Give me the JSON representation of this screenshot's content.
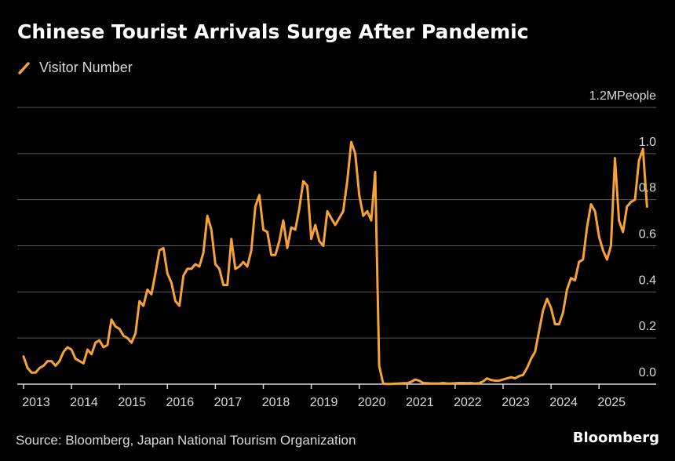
{
  "header": {
    "title": "Chinese Tourist Arrivals Surge After Pandemic",
    "legend_label": "Visitor Number"
  },
  "footer": {
    "source": "Source: Bloomberg, Japan National Tourism Organization",
    "brand": "Bloomberg"
  },
  "colors": {
    "line": "#f7a234",
    "grid": "#5a5a5a",
    "axis": "#d9d9d9"
  },
  "chart_data": {
    "type": "line",
    "title": "Chinese Tourist Arrivals Surge After Pandemic",
    "xlabel": "",
    "ylabel": "People",
    "y_unit_label": "1.2MPeople",
    "ylim": [
      0,
      1.2
    ],
    "xlim": [
      2013.0,
      2025.92
    ],
    "y_ticks": [
      0.0,
      0.2,
      0.4,
      0.6,
      0.8,
      1.0
    ],
    "y_tick_labels": [
      "0.0",
      "0.2",
      "0.4",
      "0.6",
      "0.8",
      "1.0"
    ],
    "x_ticks": [
      2013,
      2014,
      2015,
      2016,
      2017,
      2018,
      2019,
      2020,
      2021,
      2022,
      2023,
      2024,
      2025
    ],
    "x_tick_labels": [
      "2013",
      "2014",
      "2015",
      "2016",
      "2017",
      "2018",
      "2019",
      "2020",
      "2021",
      "2022",
      "2023",
      "2024",
      "2025"
    ],
    "legend": [
      "Visitor Number"
    ],
    "series": [
      {
        "name": "Visitor Number",
        "start": 2013.0,
        "step": 0.08333,
        "values": [
          0.12,
          0.07,
          0.05,
          0.05,
          0.07,
          0.08,
          0.1,
          0.1,
          0.08,
          0.1,
          0.14,
          0.16,
          0.15,
          0.11,
          0.1,
          0.09,
          0.15,
          0.13,
          0.18,
          0.19,
          0.16,
          0.17,
          0.28,
          0.25,
          0.24,
          0.21,
          0.2,
          0.18,
          0.22,
          0.36,
          0.34,
          0.41,
          0.39,
          0.48,
          0.58,
          0.59,
          0.48,
          0.44,
          0.36,
          0.34,
          0.47,
          0.5,
          0.5,
          0.52,
          0.51,
          0.57,
          0.73,
          0.67,
          0.52,
          0.5,
          0.43,
          0.43,
          0.63,
          0.5,
          0.51,
          0.53,
          0.51,
          0.58,
          0.77,
          0.82,
          0.67,
          0.66,
          0.56,
          0.56,
          0.62,
          0.71,
          0.59,
          0.68,
          0.67,
          0.76,
          0.88,
          0.86,
          0.63,
          0.69,
          0.62,
          0.6,
          0.75,
          0.72,
          0.69,
          0.72,
          0.75,
          0.88,
          1.05,
          1.0,
          0.82,
          0.73,
          0.75,
          0.71,
          0.92,
          0.08,
          0.002,
          0.001,
          0.001,
          0.002,
          0.003,
          0.004,
          0.004,
          0.01,
          0.02,
          0.015,
          0.005,
          0.004,
          0.003,
          0.003,
          0.003,
          0.005,
          0.003,
          0.003,
          0.004,
          0.005,
          0.005,
          0.004,
          0.005,
          0.003,
          0.004,
          0.012,
          0.025,
          0.018,
          0.015,
          0.015,
          0.02,
          0.025,
          0.03,
          0.025,
          0.035,
          0.04,
          0.07,
          0.11,
          0.14,
          0.23,
          0.32,
          0.37,
          0.33,
          0.26,
          0.26,
          0.31,
          0.41,
          0.46,
          0.45,
          0.53,
          0.54,
          0.68,
          0.78,
          0.75,
          0.64,
          0.58,
          0.54,
          0.6,
          0.98,
          0.71,
          0.66,
          0.77,
          0.79,
          0.8,
          0.97,
          1.02,
          0.77
        ]
      }
    ]
  }
}
